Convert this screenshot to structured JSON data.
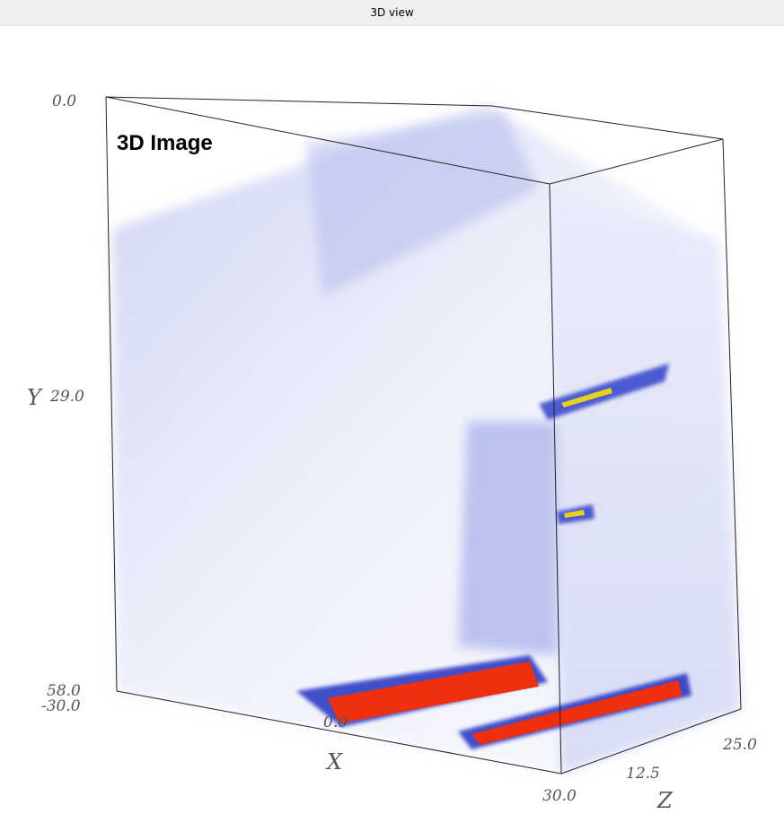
{
  "window": {
    "title": "3D view"
  },
  "view": {
    "label": "3D Image",
    "axes": {
      "y": {
        "name": "Y",
        "ticks": [
          "0.0",
          "29.0",
          "58.0"
        ]
      },
      "x": {
        "name": "X",
        "ticks": [
          "-30.0",
          "0.0",
          "30.0"
        ]
      },
      "z": {
        "name": "Z",
        "ticks": [
          "12.5",
          "25.0"
        ]
      }
    }
  }
}
